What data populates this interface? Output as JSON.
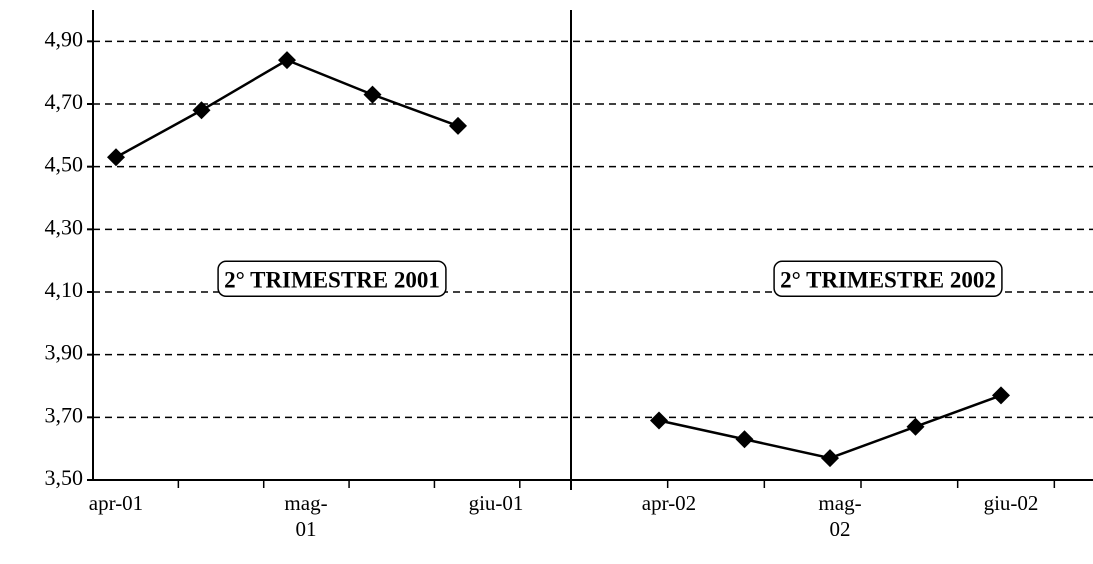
{
  "chart_data": {
    "type": "line",
    "categories": [
      "apr-01",
      null,
      "mag-01",
      null,
      "giu-01",
      "apr-02",
      null,
      "mag-02",
      null,
      "giu-02"
    ],
    "series": [
      {
        "color": "#000000",
        "values": [
          4.53,
          4.68,
          4.84,
          4.73,
          4.63,
          null,
          null,
          null,
          null,
          null
        ]
      },
      {
        "color": "#000000",
        "values": [
          null,
          null,
          null,
          null,
          null,
          3.69,
          3.63,
          3.57,
          3.67,
          3.77
        ]
      }
    ],
    "ylim": [
      3.5,
      5.0
    ],
    "yticks": [
      {
        "value": 3.5,
        "label": "3,50"
      },
      {
        "value": 3.7,
        "label": "3,70"
      },
      {
        "value": 3.9,
        "label": "3,90"
      },
      {
        "value": 4.1,
        "label": "4,10"
      },
      {
        "value": 4.3,
        "label": "4,30"
      },
      {
        "value": 4.5,
        "label": "4,50"
      },
      {
        "value": 4.7,
        "label": "4,70"
      },
      {
        "value": 4.9,
        "label": "4,90"
      }
    ],
    "grid": true,
    "annotations": [
      "2° TRIMESTRE 2001",
      "2° TRIMESTRE 2002"
    ]
  }
}
